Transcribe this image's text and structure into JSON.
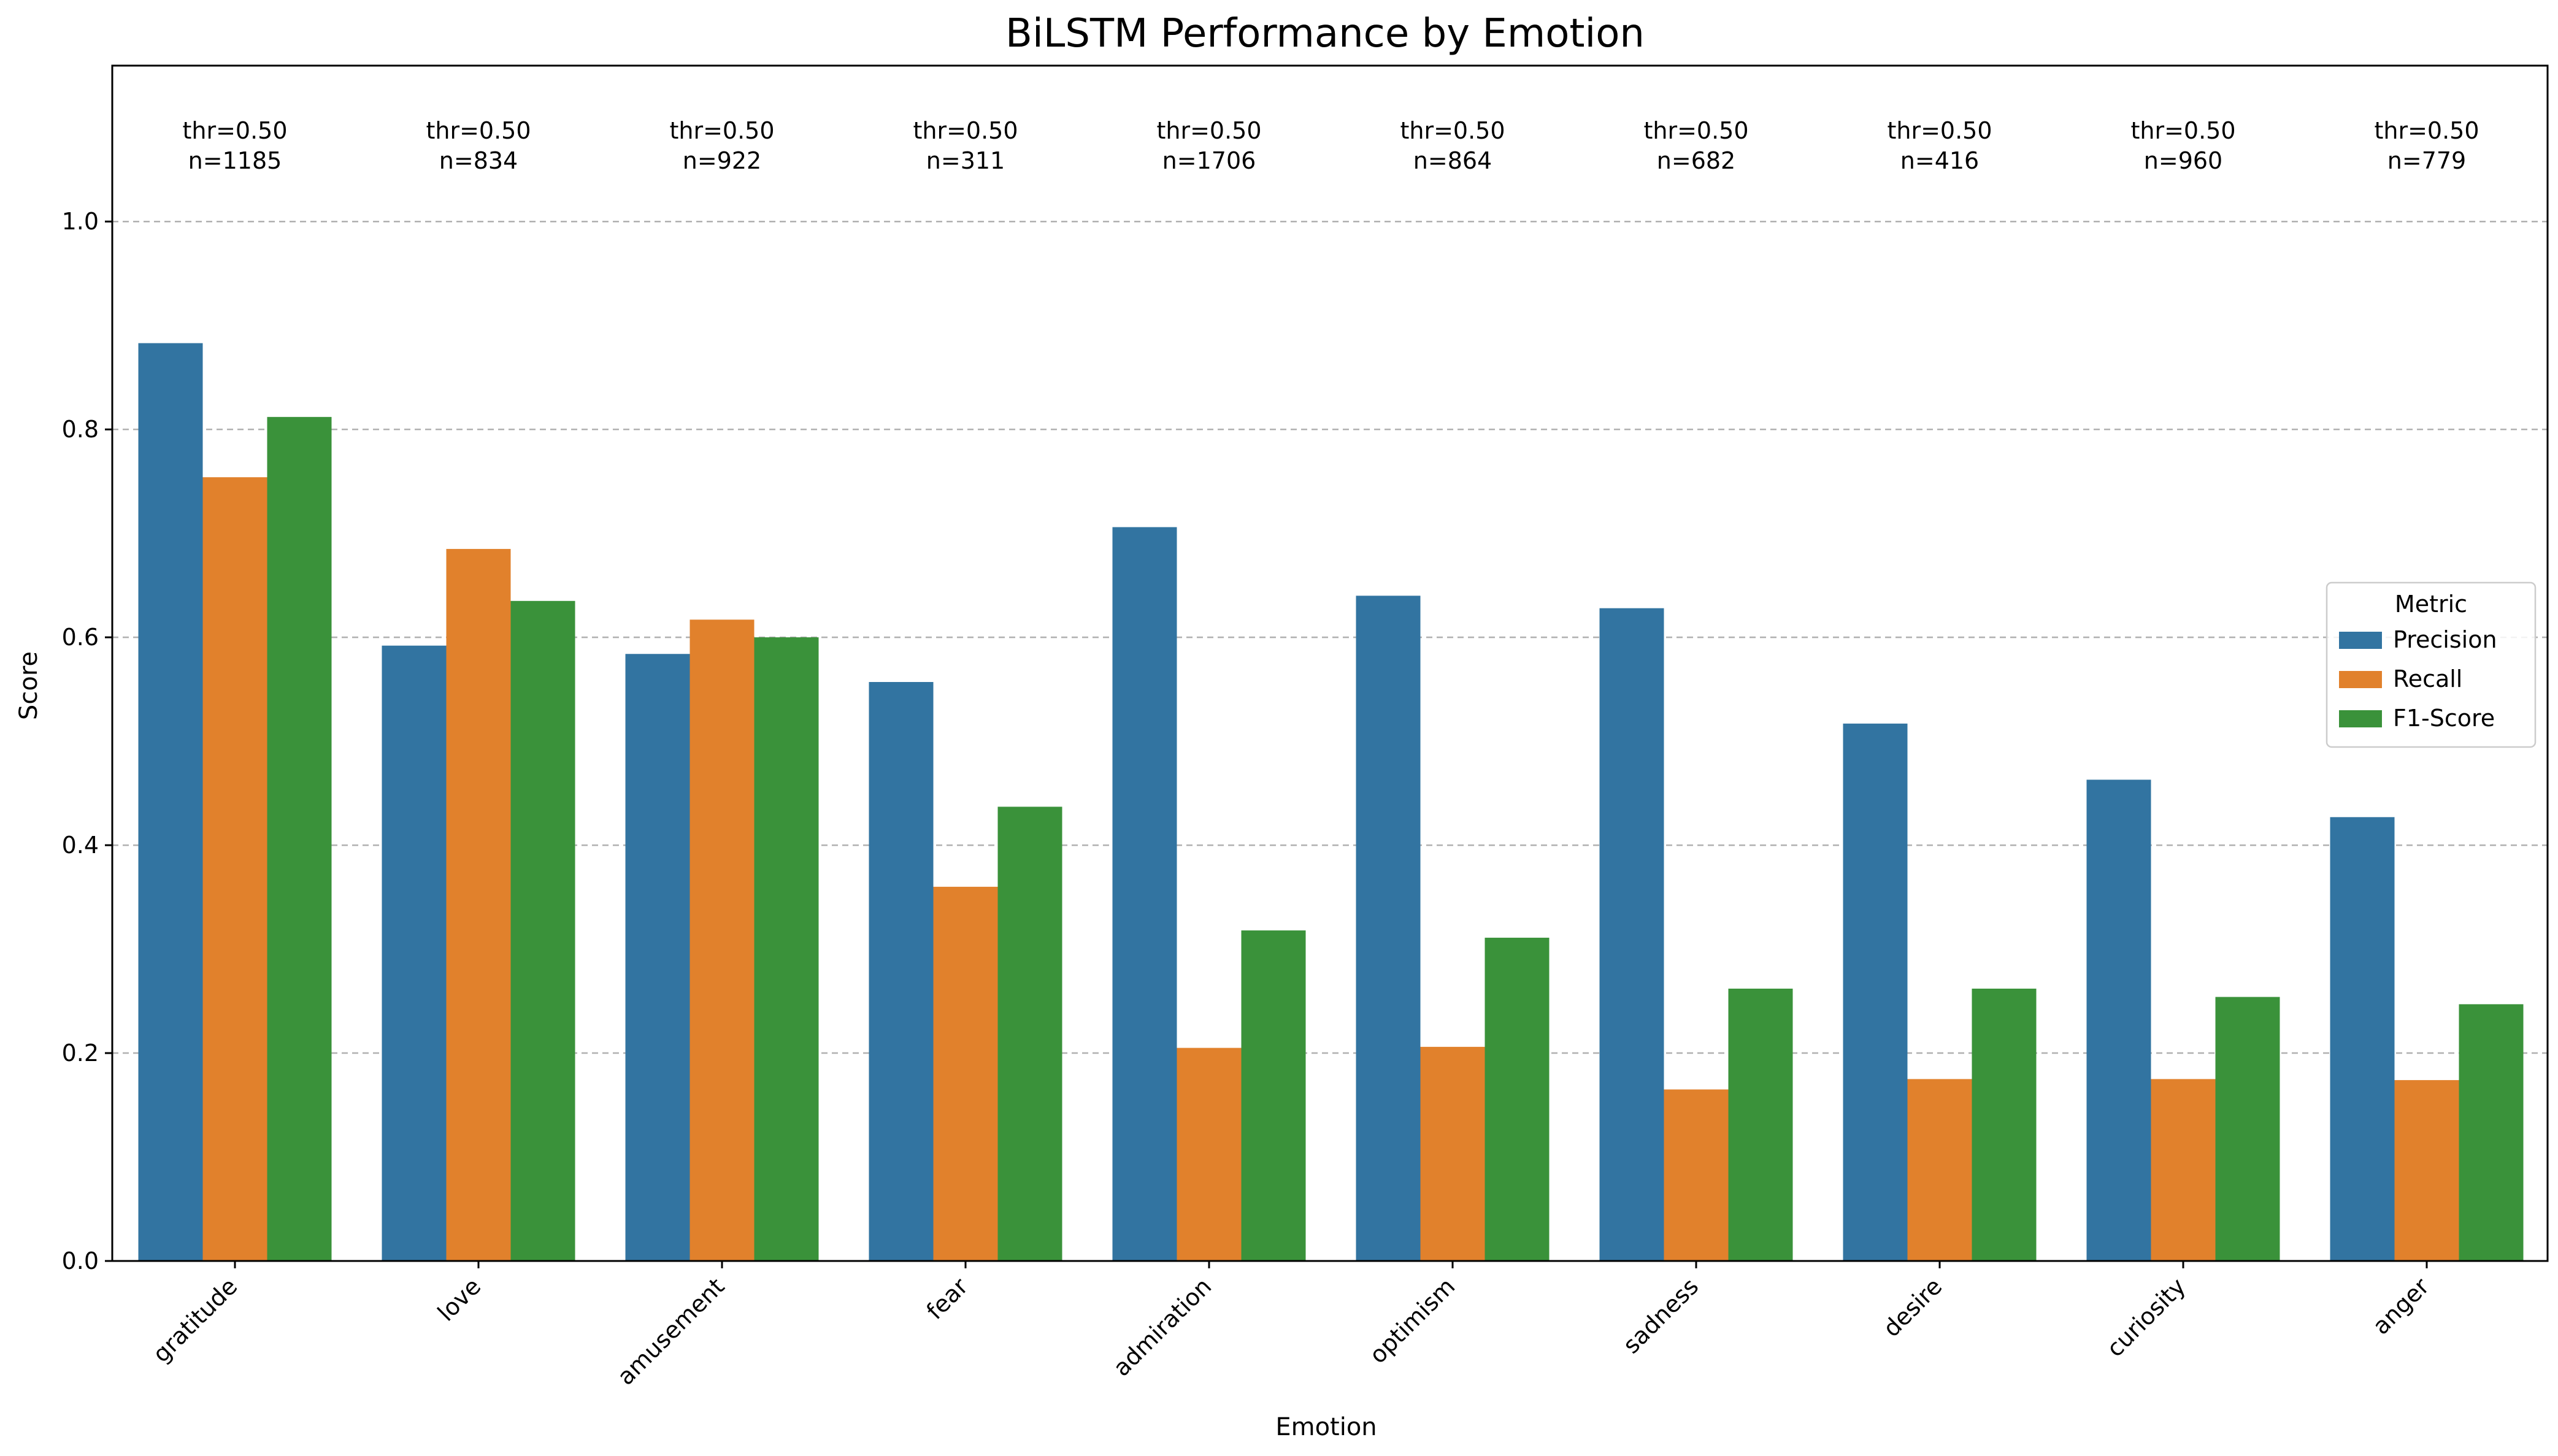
{
  "chart_data": {
    "type": "bar",
    "title": "BiLSTM Performance by Emotion",
    "xlabel": "Emotion",
    "ylabel": "Score",
    "ylim": [
      0,
      1.15
    ],
    "yticks": [
      "0.0",
      "0.2",
      "0.4",
      "0.6",
      "0.8",
      "1.0"
    ],
    "grid": "horizontal dashed",
    "categories": [
      "gratitude",
      "love",
      "amusement",
      "fear",
      "admiration",
      "optimism",
      "sadness",
      "desire",
      "curiosity",
      "anger"
    ],
    "series": [
      {
        "name": "Precision",
        "color": "#3274a1",
        "values": [
          0.883,
          0.592,
          0.584,
          0.557,
          0.706,
          0.64,
          0.628,
          0.517,
          0.463,
          0.427
        ]
      },
      {
        "name": "Recall",
        "color": "#e1812c",
        "values": [
          0.754,
          0.685,
          0.617,
          0.36,
          0.205,
          0.206,
          0.165,
          0.175,
          0.175,
          0.174
        ]
      },
      {
        "name": "F1-Score",
        "color": "#3a923a",
        "values": [
          0.812,
          0.635,
          0.6,
          0.437,
          0.318,
          0.311,
          0.262,
          0.262,
          0.254,
          0.247
        ]
      }
    ],
    "annotations": [
      {
        "thr": "thr=0.50",
        "n": "n=1185"
      },
      {
        "thr": "thr=0.50",
        "n": "n=834"
      },
      {
        "thr": "thr=0.50",
        "n": "n=922"
      },
      {
        "thr": "thr=0.50",
        "n": "n=311"
      },
      {
        "thr": "thr=0.50",
        "n": "n=1706"
      },
      {
        "thr": "thr=0.50",
        "n": "n=864"
      },
      {
        "thr": "thr=0.50",
        "n": "n=682"
      },
      {
        "thr": "thr=0.50",
        "n": "n=416"
      },
      {
        "thr": "thr=0.50",
        "n": "n=960"
      },
      {
        "thr": "thr=0.50",
        "n": "n=779"
      }
    ],
    "legend": {
      "title": "Metric",
      "placement": "right"
    }
  }
}
